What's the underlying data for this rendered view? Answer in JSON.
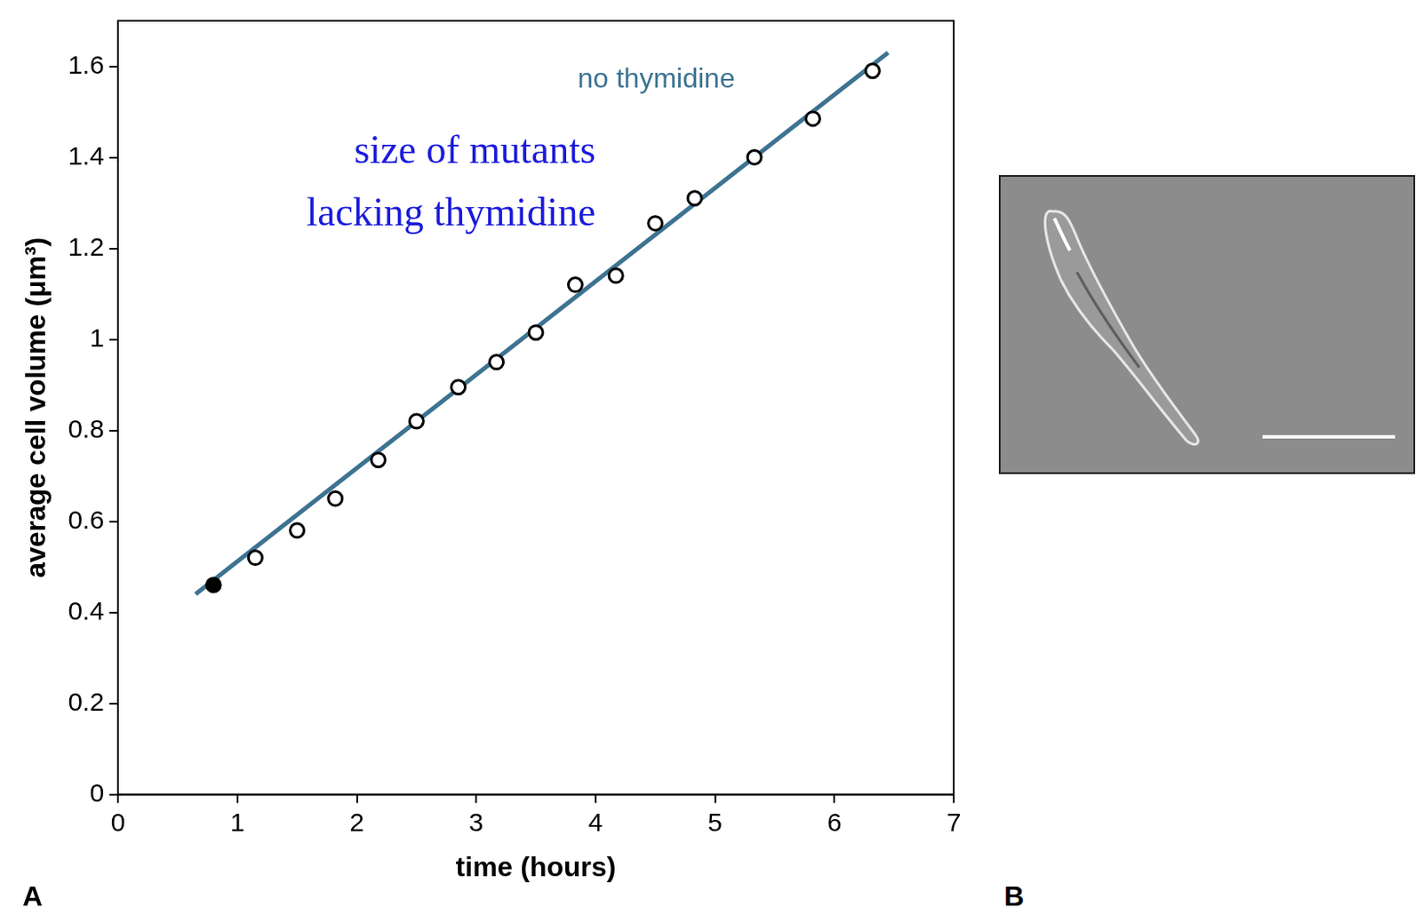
{
  "chart_data": {
    "type": "scatter",
    "panel": "A",
    "x_label": "time (hours)",
    "y_label": "average cell volume (μm³)",
    "xlim": [
      0,
      7
    ],
    "xticks": [
      0,
      1,
      2,
      3,
      4,
      5,
      6,
      7
    ],
    "ylim": [
      0,
      1.7
    ],
    "yticks": [
      0,
      0.2,
      0.4,
      0.6,
      0.8,
      1.0,
      1.2,
      1.4,
      1.6
    ],
    "grid": false,
    "series": [
      {
        "name": "no thymidine",
        "type": "line",
        "color": "#3d7391",
        "x": [
          0.65,
          6.45
        ],
        "values": [
          0.44,
          1.63
        ]
      },
      {
        "type": "scatter",
        "marker": "open circle",
        "color": "#000000",
        "x": [
          1.15,
          1.5,
          1.82,
          2.18,
          2.5,
          2.85,
          3.17,
          3.5,
          3.83,
          4.17,
          4.5,
          4.83,
          5.33,
          5.82,
          6.32
        ],
        "values": [
          0.52,
          0.58,
          0.65,
          0.735,
          0.82,
          0.895,
          0.95,
          1.015,
          1.12,
          1.14,
          1.255,
          1.31,
          1.4,
          1.485,
          1.59
        ]
      },
      {
        "type": "scatter",
        "marker": "filled circle",
        "color": "#000000",
        "x": [
          0.8
        ],
        "values": [
          0.46
        ]
      }
    ],
    "annotations": [
      {
        "text": "size of mutants lacking thymidine",
        "color": "#1a1adc"
      }
    ]
  },
  "image_panel": {
    "panel": "B"
  }
}
